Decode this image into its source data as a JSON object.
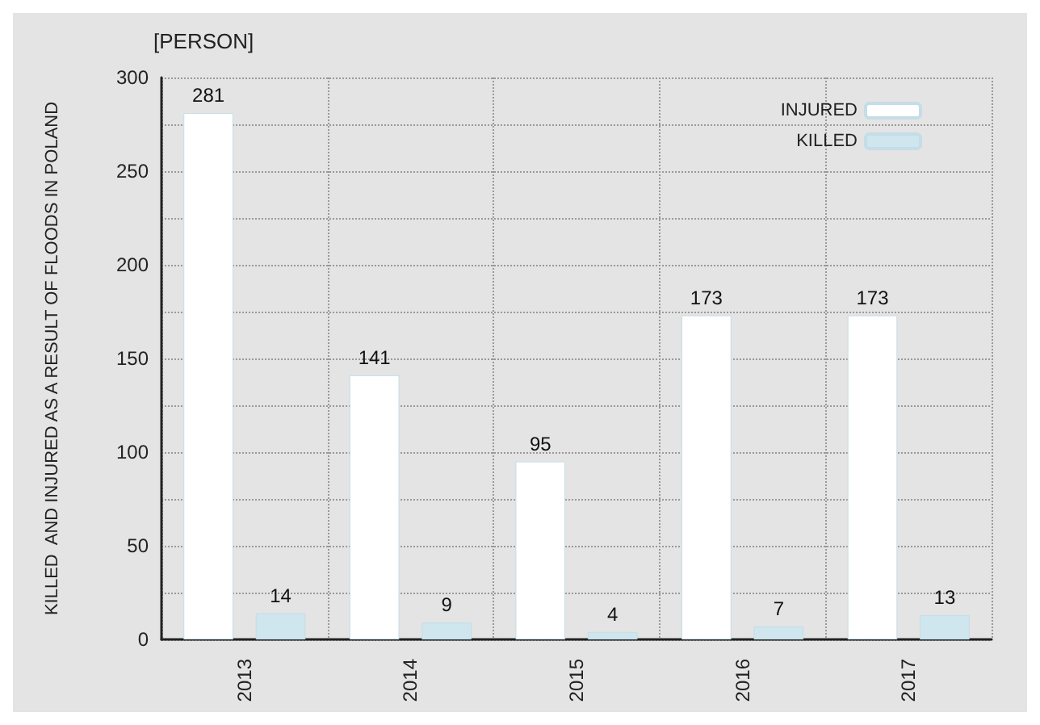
{
  "chart_data": {
    "type": "bar",
    "title": "[PERSON]",
    "ylabel": "KILLED  AND INJURED AS A RESULT OF FLOODS IN POLAND",
    "categories": [
      "2013",
      "2014",
      "2015",
      "2016",
      "2017"
    ],
    "series": [
      {
        "name": "INJURED",
        "color": "#ffffff",
        "values": [
          281,
          141,
          95,
          173,
          173
        ]
      },
      {
        "name": "KILLED",
        "color": "#cfe6ee",
        "values": [
          14,
          9,
          4,
          7,
          13
        ]
      }
    ],
    "ylim": [
      0,
      300
    ],
    "yticks": [
      0,
      {
        "value": 25,
        "label": null
      },
      50,
      {
        "value": 75,
        "label": null
      },
      100,
      {
        "value": 125,
        "label": null
      },
      150,
      {
        "value": 175,
        "label": null
      },
      200,
      {
        "value": 225,
        "label": null
      },
      250,
      {
        "value": 275,
        "label": null
      },
      300
    ],
    "grid": true,
    "legend": "top right",
    "data_labels": true
  }
}
